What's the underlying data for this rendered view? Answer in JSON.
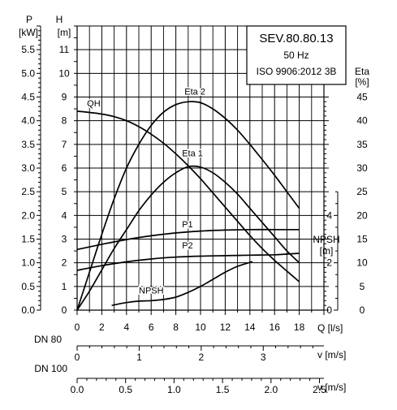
{
  "chart_data": {
    "type": "line",
    "info_box": {
      "model": "SEV.80.80.13",
      "frequency": "50 Hz",
      "standard": "ISO 9906:2012 3B"
    },
    "x_axis": {
      "label": "Q [l/s]",
      "range": [
        0,
        20
      ],
      "ticks": [
        "0",
        "2",
        "4",
        "6",
        "8",
        "10",
        "12",
        "14",
        "16",
        "18"
      ]
    },
    "y_axis_H": {
      "label_top": "H",
      "label_unit": "[m]",
      "range": [
        0,
        12
      ],
      "ticks": [
        "0",
        "1",
        "2",
        "3",
        "4",
        "5",
        "6",
        "7",
        "8",
        "9",
        "10",
        "11"
      ]
    },
    "y_axis_P": {
      "label_top": "P",
      "label_unit": "[kW]",
      "range": [
        0,
        6
      ],
      "ticks": [
        "0.0",
        "0.5",
        "1.0",
        "1.5",
        "2.0",
        "2.5",
        "3.0",
        "3.5",
        "4.0",
        "4.5",
        "5.0",
        "5.5"
      ]
    },
    "y_axis_eta": {
      "label_top": "Eta",
      "label_unit": "[%]",
      "range": [
        0,
        60
      ],
      "ticks": [
        "0",
        "5",
        "10",
        "15",
        "20",
        "25",
        "30",
        "35",
        "40",
        "45"
      ]
    },
    "y_axis_npsh": {
      "label_top": "NPSH",
      "label_unit": "[m]",
      "range": [
        0,
        12
      ],
      "ticks": [
        "0",
        "2",
        "4"
      ]
    },
    "velocity_axes": [
      {
        "name": "DN 80",
        "label": "v [m/s]",
        "ticks": [
          "0",
          "1",
          "2",
          "3"
        ],
        "factor": 0.1989
      },
      {
        "name": "DN 100",
        "label": "v [m/s]",
        "ticks": [
          "0.0",
          "0.5",
          "1.0",
          "1.5",
          "2.0",
          "2.5"
        ],
        "factor": 0.1273
      }
    ],
    "series": [
      {
        "name": "QH",
        "axis": "H",
        "label_at": [
          0.8,
          8.6
        ],
        "x": [
          0,
          1,
          2,
          3,
          4,
          5,
          6,
          7,
          8,
          9,
          10,
          11,
          12,
          13,
          14,
          15,
          16,
          17,
          18
        ],
        "y": [
          8.4,
          8.35,
          8.28,
          8.17,
          8.0,
          7.75,
          7.43,
          7.05,
          6.6,
          6.1,
          5.55,
          4.95,
          4.35,
          3.75,
          3.15,
          2.6,
          2.1,
          1.65,
          1.2
        ]
      },
      {
        "name": "Eta 2",
        "axis": "eta",
        "label_at": [
          8.7,
          45.5
        ],
        "x": [
          0,
          1,
          2,
          3,
          4,
          5,
          6,
          7,
          8,
          9,
          10,
          11,
          12,
          13,
          14,
          15,
          16,
          17,
          18
        ],
        "y": [
          0,
          8,
          16,
          23.5,
          30,
          35,
          39,
          41.8,
          43.4,
          44,
          43.8,
          42.5,
          40.5,
          38,
          35,
          31.8,
          28.5,
          25,
          21.5
        ]
      },
      {
        "name": "Eta 1",
        "axis": "eta",
        "label_at": [
          8.5,
          32.5
        ],
        "x": [
          0,
          1,
          2,
          3,
          4,
          5,
          6,
          7,
          8,
          9,
          10,
          11,
          12,
          13,
          14,
          15,
          16,
          17,
          18
        ],
        "y": [
          0,
          4,
          8.5,
          13,
          17,
          21,
          24.3,
          27,
          29,
          30.3,
          30.2,
          29,
          27,
          24.5,
          21.5,
          18.5,
          15.5,
          12.5,
          10
        ]
      },
      {
        "name": "P1",
        "axis": "P",
        "label_at": [
          8.5,
          1.75
        ],
        "x": [
          0,
          2,
          4,
          6,
          8,
          10,
          12,
          14,
          16,
          18
        ],
        "y": [
          1.28,
          1.39,
          1.49,
          1.57,
          1.63,
          1.67,
          1.69,
          1.7,
          1.7,
          1.7
        ]
      },
      {
        "name": "P2",
        "axis": "P",
        "label_at": [
          8.5,
          1.3
        ],
        "x": [
          0,
          2,
          4,
          6,
          8,
          10,
          12,
          14,
          16,
          18
        ],
        "y": [
          0.84,
          0.94,
          1.02,
          1.08,
          1.12,
          1.14,
          1.15,
          1.16,
          1.17,
          1.2
        ]
      },
      {
        "name": "NPSH",
        "axis": "npsh",
        "label_at": [
          5,
          0.7
        ],
        "x": [
          2.8,
          4,
          5,
          6,
          7,
          8,
          9,
          10,
          11,
          12,
          13,
          14.2
        ],
        "y": [
          0.2,
          0.32,
          0.38,
          0.4,
          0.45,
          0.55,
          0.75,
          1.0,
          1.3,
          1.6,
          1.85,
          2.05
        ]
      }
    ]
  }
}
